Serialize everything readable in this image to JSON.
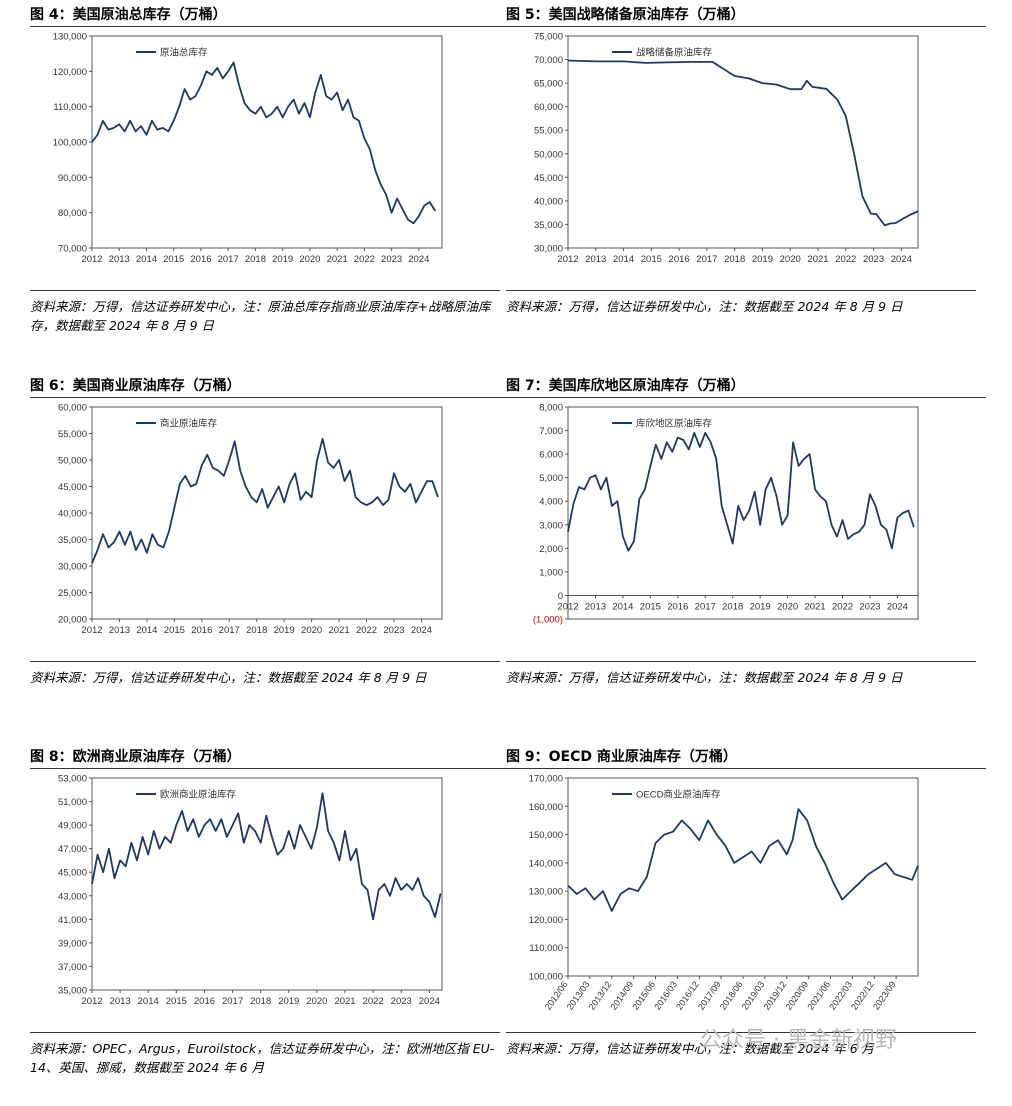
{
  "panels": [
    {
      "title": "图 4：美国原油总库存（万桶）",
      "note": "资料来源：万得，信达证券研发中心，注：原油总库存指商业原油库存+战略原油库存，数据截至 2024 年 8 月 9 日",
      "chart_data": {
        "type": "line",
        "title": "美国原油总库存（万桶）",
        "legend": "原油总库存",
        "legend_position": "top-left",
        "ylim": [
          70000,
          130000
        ],
        "yticks": [
          70000,
          80000,
          90000,
          100000,
          110000,
          120000,
          130000
        ],
        "ytick_labels": [
          "70,000",
          "80,000",
          "90,000",
          "100,000",
          "110,000",
          "120,000",
          "130,000"
        ],
        "xlim": [
          2012,
          2024.85
        ],
        "xticks": [
          2012,
          2013,
          2014,
          2015,
          2016,
          2017,
          2018,
          2019,
          2020,
          2021,
          2022,
          2023,
          2024
        ],
        "xtick_labels": [
          "2012",
          "2013",
          "2014",
          "2015",
          "2016",
          "2017",
          "2018",
          "2019",
          "2020",
          "2021",
          "2022",
          "2023",
          "2024"
        ],
        "color": "#1f3864",
        "x": [
          2012,
          2012.2,
          2012.4,
          2012.6,
          2012.8,
          2013,
          2013.2,
          2013.4,
          2013.6,
          2013.8,
          2014,
          2014.2,
          2014.4,
          2014.6,
          2014.8,
          2015,
          2015.2,
          2015.4,
          2015.6,
          2015.8,
          2016,
          2016.2,
          2016.4,
          2016.6,
          2016.8,
          2017,
          2017.2,
          2017.4,
          2017.6,
          2017.8,
          2018,
          2018.2,
          2018.4,
          2018.6,
          2018.8,
          2019,
          2019.2,
          2019.4,
          2019.6,
          2019.8,
          2020,
          2020.2,
          2020.4,
          2020.6,
          2020.8,
          2021,
          2021.2,
          2021.4,
          2021.6,
          2021.8,
          2022,
          2022.2,
          2022.4,
          2022.6,
          2022.8,
          2023,
          2023.2,
          2023.4,
          2023.6,
          2023.8,
          2024,
          2024.2,
          2024.4,
          2024.6
        ],
        "values": [
          100000,
          102000,
          106000,
          103500,
          104000,
          105000,
          103000,
          106000,
          103000,
          104500,
          102000,
          106000,
          103500,
          104000,
          103000,
          106000,
          110000,
          115000,
          112000,
          113000,
          116000,
          120000,
          119000,
          121000,
          118000,
          120000,
          122500,
          116000,
          111000,
          109000,
          108000,
          110000,
          107000,
          108000,
          110000,
          107000,
          110000,
          112000,
          108000,
          111000,
          107000,
          114000,
          119000,
          113000,
          112000,
          114000,
          109000,
          112000,
          107000,
          106000,
          101000,
          98000,
          92000,
          88000,
          85000,
          80000,
          84000,
          81000,
          78000,
          77000,
          79000,
          82000,
          83000,
          80500
        ]
      }
    },
    {
      "title": "图 5：美国战略储备原油库存（万桶）",
      "note": "资料来源：万得，信达证券研发中心，注：数据截至 2024 年 8 月 9 日",
      "chart_data": {
        "type": "line",
        "title": "美国战略储备原油库存（万桶）",
        "legend": "战略储备原油库存",
        "legend_position": "top-left",
        "ylim": [
          30000,
          75000
        ],
        "yticks": [
          30000,
          35000,
          40000,
          45000,
          50000,
          55000,
          60000,
          65000,
          70000,
          75000
        ],
        "ytick_labels": [
          "30,000",
          "35,000",
          "40,000",
          "45,000",
          "50,000",
          "55,000",
          "60,000",
          "65,000",
          "70,000",
          "75,000"
        ],
        "xlim": [
          2012,
          2024.6
        ],
        "xticks": [
          2012,
          2013,
          2014,
          2015,
          2016,
          2017,
          2018,
          2019,
          2020,
          2021,
          2022,
          2023,
          2024
        ],
        "xtick_labels": [
          "2012",
          "2013",
          "2014",
          "2015",
          "2016",
          "2017",
          "2018",
          "2019",
          "2020",
          "2021",
          "2022",
          "2023",
          "2024"
        ],
        "color": "#1f3864",
        "x": [
          2012,
          2013,
          2014,
          2014.8,
          2015.6,
          2016.5,
          2017.2,
          2017.6,
          2018,
          2018.5,
          2019,
          2019.5,
          2020,
          2020.4,
          2020.6,
          2020.8,
          2021.3,
          2021.7,
          2022,
          2022.3,
          2022.6,
          2022.9,
          2023.1,
          2023.4,
          2023.6,
          2023.8,
          2024,
          2024.3,
          2024.6
        ],
        "values": [
          69800,
          69600,
          69600,
          69300,
          69400,
          69500,
          69500,
          68000,
          66500,
          66000,
          65000,
          64700,
          63700,
          63700,
          65500,
          64200,
          63800,
          61500,
          58000,
          50000,
          41000,
          37300,
          37200,
          34800,
          35200,
          35300,
          36000,
          37000,
          37800
        ]
      }
    },
    {
      "title": "图 6：美国商业原油库存（万桶）",
      "note": "资料来源：万得，信达证券研发中心，注：数据截至 2024 年 8 月 9 日",
      "chart_data": {
        "type": "line",
        "title": "美国商业原油库存（万桶）",
        "legend": "商业原油库存",
        "legend_position": "top-left",
        "ylim": [
          20000,
          60000
        ],
        "yticks": [
          20000,
          25000,
          30000,
          35000,
          40000,
          45000,
          50000,
          55000,
          60000
        ],
        "ytick_labels": [
          "20,000",
          "25,000",
          "30,000",
          "35,000",
          "40,000",
          "45,000",
          "50,000",
          "55,000",
          "60,000"
        ],
        "xlim": [
          2012,
          2024.75
        ],
        "xticks": [
          2012,
          2013,
          2014,
          2015,
          2016,
          2017,
          2018,
          2019,
          2020,
          2021,
          2022,
          2023,
          2024
        ],
        "xtick_labels": [
          "2012",
          "2013",
          "2014",
          "2015",
          "2016",
          "2017",
          "2018",
          "2019",
          "2020",
          "2021",
          "2022",
          "2023",
          "2024"
        ],
        "color": "#1f3864",
        "x": [
          2012,
          2012.2,
          2012.4,
          2012.6,
          2012.8,
          2013,
          2013.2,
          2013.4,
          2013.6,
          2013.8,
          2014,
          2014.2,
          2014.4,
          2014.6,
          2014.8,
          2015,
          2015.2,
          2015.4,
          2015.6,
          2015.8,
          2016,
          2016.2,
          2016.4,
          2016.6,
          2016.8,
          2017,
          2017.2,
          2017.4,
          2017.6,
          2017.8,
          2018,
          2018.2,
          2018.4,
          2018.6,
          2018.8,
          2019,
          2019.2,
          2019.4,
          2019.6,
          2019.8,
          2020,
          2020.2,
          2020.4,
          2020.6,
          2020.8,
          2021,
          2021.2,
          2021.4,
          2021.6,
          2021.8,
          2022,
          2022.2,
          2022.4,
          2022.6,
          2022.8,
          2023,
          2023.2,
          2023.4,
          2023.6,
          2023.8,
          2024,
          2024.2,
          2024.4,
          2024.6
        ],
        "values": [
          30500,
          33000,
          36000,
          33500,
          34500,
          36500,
          34000,
          36500,
          33000,
          35000,
          32500,
          36000,
          34000,
          33500,
          36500,
          41000,
          45500,
          47000,
          45000,
          45500,
          49000,
          51000,
          48500,
          48000,
          47000,
          50000,
          53500,
          48000,
          45000,
          43000,
          42000,
          44500,
          41000,
          43000,
          45000,
          42000,
          45500,
          47500,
          42500,
          44000,
          43000,
          50000,
          54000,
          49500,
          48500,
          50000,
          46000,
          48000,
          43000,
          42000,
          41500,
          42000,
          43000,
          41500,
          42500,
          47500,
          45000,
          44000,
          45500,
          42000,
          44000,
          46000,
          46000,
          43000
        ]
      }
    },
    {
      "title": "图 7：美国库欣地区原油库存（万桶）",
      "note": "资料来源：万得，信达证券研发中心，注：数据截至 2024 年 8 月 9 日",
      "chart_data": {
        "type": "line",
        "title": "美国库欣地区原油库存（万桶）",
        "legend": "库欣地区原油库存",
        "legend_position": "top-left",
        "ylim": [
          -1000,
          8000
        ],
        "yticks": [
          -1000,
          0,
          1000,
          2000,
          3000,
          4000,
          5000,
          6000,
          7000,
          8000
        ],
        "ytick_labels": [
          "(1,000)",
          "0",
          "1,000",
          "2,000",
          "3,000",
          "4,000",
          "5,000",
          "6,000",
          "7,000",
          "8,000"
        ],
        "xlim": [
          2012,
          2024.75
        ],
        "xticks": [
          2012,
          2013,
          2014,
          2015,
          2016,
          2017,
          2018,
          2019,
          2020,
          2021,
          2022,
          2023,
          2024
        ],
        "xtick_labels": [
          "2012",
          "2013",
          "2014",
          "2015",
          "2016",
          "2017",
          "2018",
          "2019",
          "2020",
          "2021",
          "2022",
          "2023",
          "2024"
        ],
        "color": "#1f3864",
        "x": [
          2012,
          2012.2,
          2012.4,
          2012.6,
          2012.8,
          2013,
          2013.2,
          2013.4,
          2013.6,
          2013.8,
          2014,
          2014.2,
          2014.4,
          2014.6,
          2014.8,
          2015,
          2015.2,
          2015.4,
          2015.6,
          2015.8,
          2016,
          2016.2,
          2016.4,
          2016.6,
          2016.8,
          2017,
          2017.2,
          2017.4,
          2017.6,
          2017.8,
          2018,
          2018.2,
          2018.4,
          2018.6,
          2018.8,
          2019,
          2019.2,
          2019.4,
          2019.6,
          2019.8,
          2020,
          2020.2,
          2020.4,
          2020.6,
          2020.8,
          2021,
          2021.2,
          2021.4,
          2021.6,
          2021.8,
          2022,
          2022.2,
          2022.4,
          2022.6,
          2022.8,
          2023,
          2023.2,
          2023.4,
          2023.6,
          2023.8,
          2024,
          2024.2,
          2024.4,
          2024.6
        ],
        "values": [
          2700,
          3900,
          4600,
          4500,
          5000,
          5100,
          4500,
          5000,
          3800,
          4000,
          2500,
          1900,
          2300,
          4100,
          4500,
          5500,
          6400,
          5800,
          6500,
          6100,
          6700,
          6600,
          6200,
          6900,
          6300,
          6900,
          6500,
          5800,
          3800,
          3000,
          2200,
          3800,
          3200,
          3600,
          4400,
          3000,
          4500,
          5000,
          4200,
          3000,
          3400,
          6500,
          5500,
          5800,
          6000,
          4500,
          4200,
          4000,
          3000,
          2500,
          3200,
          2400,
          2600,
          2700,
          3000,
          4300,
          3800,
          3000,
          2800,
          2000,
          3300,
          3500,
          3600,
          2900
        ]
      }
    },
    {
      "title": "图 8：欧洲商业原油库存（万桶）",
      "note": "资料来源：OPEC，Argus，Euroilstock，信达证券研发中心，注：欧洲地区指 EU-14、英国、挪威，数据截至 2024 年 6 月",
      "chart_data": {
        "type": "line",
        "title": "欧洲商业原油库存（万桶）",
        "legend": "欧洲商业原油库存",
        "legend_position": "top-left",
        "ylim": [
          35000,
          53000
        ],
        "yticks": [
          35000,
          37000,
          39000,
          41000,
          43000,
          45000,
          47000,
          49000,
          51000,
          53000
        ],
        "ytick_labels": [
          "35,000",
          "37,000",
          "39,000",
          "41,000",
          "43,000",
          "45,000",
          "47,000",
          "49,000",
          "51,000",
          "53,000"
        ],
        "xlim": [
          2012,
          2024.45
        ],
        "xticks": [
          2012,
          2013,
          2014,
          2015,
          2016,
          2017,
          2018,
          2019,
          2020,
          2021,
          2022,
          2023,
          2024
        ],
        "xtick_labels": [
          "2012",
          "2013",
          "2014",
          "2015",
          "2016",
          "2017",
          "2018",
          "2019",
          "2020",
          "2021",
          "2022",
          "2023",
          "2024"
        ],
        "color": "#1f3864",
        "x": [
          2012,
          2012.2,
          2012.4,
          2012.6,
          2012.8,
          2013,
          2013.2,
          2013.4,
          2013.6,
          2013.8,
          2014,
          2014.2,
          2014.4,
          2014.6,
          2014.8,
          2015,
          2015.2,
          2015.4,
          2015.6,
          2015.8,
          2016,
          2016.2,
          2016.4,
          2016.6,
          2016.8,
          2017,
          2017.2,
          2017.4,
          2017.6,
          2017.8,
          2018,
          2018.2,
          2018.4,
          2018.6,
          2018.8,
          2019,
          2019.2,
          2019.4,
          2019.6,
          2019.8,
          2020,
          2020.2,
          2020.4,
          2020.6,
          2020.8,
          2021,
          2021.2,
          2021.4,
          2021.6,
          2021.8,
          2022,
          2022.2,
          2022.4,
          2022.6,
          2022.8,
          2023,
          2023.2,
          2023.4,
          2023.6,
          2023.8,
          2024,
          2024.2,
          2024.4
        ],
        "values": [
          44000,
          46500,
          45000,
          47000,
          44500,
          46000,
          45500,
          47500,
          46000,
          48000,
          46500,
          48500,
          47000,
          48000,
          47500,
          49000,
          50200,
          48500,
          49500,
          48000,
          49000,
          49500,
          48500,
          49500,
          48000,
          49000,
          50000,
          47500,
          49000,
          48500,
          47500,
          49800,
          48000,
          46500,
          47000,
          48500,
          47000,
          49000,
          48000,
          47000,
          48800,
          51700,
          48500,
          47500,
          46000,
          48500,
          46000,
          47000,
          44000,
          43500,
          41000,
          43500,
          44000,
          43000,
          44500,
          43500,
          44000,
          43500,
          44500,
          43000,
          42500,
          41200,
          43200
        ]
      }
    },
    {
      "title": "图 9：OECD 商业原油库存（万桶）",
      "note": "资料来源：万得，信达证券研发中心，注：数据截至 2024 年 6 月",
      "chart_data": {
        "type": "line",
        "title": "OECD 商业原油库存（万桶）",
        "legend": "OECD商业原油库存",
        "legend_position": "top-left",
        "ylim": [
          100000,
          170000
        ],
        "yticks": [
          100000,
          110000,
          120000,
          130000,
          140000,
          150000,
          160000,
          170000
        ],
        "ytick_labels": [
          "100,000",
          "110,000",
          "120,000",
          "130,000",
          "140,000",
          "150,000",
          "160,000",
          "170,000"
        ],
        "xlim": [
          2012.5,
          2024.5
        ],
        "xticks": [
          2012.5,
          2013.25,
          2014,
          2014.75,
          2015.5,
          2016.25,
          2017,
          2017.75,
          2018.5,
          2019.25,
          2020,
          2020.75,
          2021.5,
          2022.25,
          2023,
          2023.75
        ],
        "xtick_labels": [
          "2012/06",
          "2013/03",
          "2013/12",
          "2014/09",
          "2015/06",
          "2016/03",
          "2016/12",
          "2017/09",
          "2018/06",
          "2019/03",
          "2019/12",
          "2020/09",
          "2021/06",
          "2022/03",
          "2022/12",
          "2023/09"
        ],
        "color": "#1f3864",
        "x": [
          2012.5,
          2012.8,
          2013.1,
          2013.4,
          2013.7,
          2014,
          2014.3,
          2014.6,
          2014.9,
          2015.2,
          2015.5,
          2015.8,
          2016.1,
          2016.4,
          2016.7,
          2017,
          2017.3,
          2017.6,
          2017.9,
          2018.2,
          2018.5,
          2018.8,
          2019.1,
          2019.4,
          2019.7,
          2020,
          2020.2,
          2020.4,
          2020.7,
          2021,
          2021.3,
          2021.6,
          2021.9,
          2022.2,
          2022.5,
          2022.8,
          2023.1,
          2023.4,
          2023.7,
          2024,
          2024.3,
          2024.5
        ],
        "values": [
          132000,
          129000,
          131000,
          127000,
          130000,
          123000,
          129000,
          131000,
          130000,
          135000,
          147000,
          150000,
          151000,
          155000,
          152000,
          148000,
          155000,
          150000,
          146000,
          140000,
          142000,
          144000,
          140000,
          146000,
          148000,
          143000,
          148000,
          159000,
          155000,
          146000,
          140000,
          133000,
          127000,
          130000,
          133000,
          136000,
          138000,
          140000,
          136000,
          135000,
          134000,
          139000
        ]
      }
    }
  ],
  "watermark": "公众号 · 黑金新视野"
}
